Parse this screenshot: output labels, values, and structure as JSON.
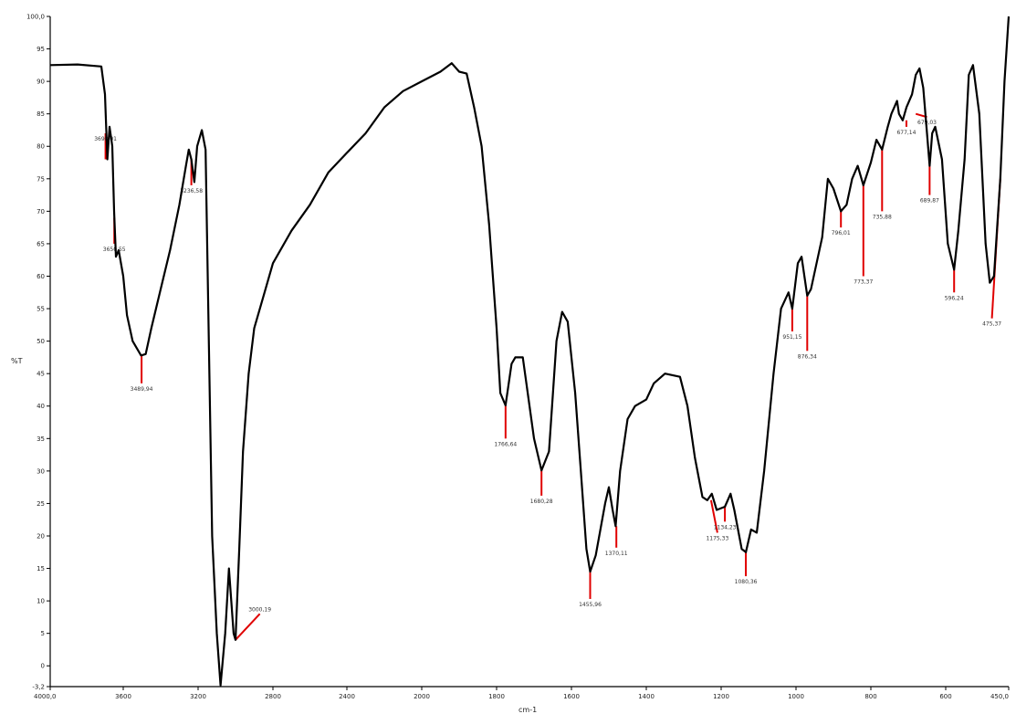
{
  "chart_data": {
    "type": "line",
    "xlabel": "cm-1",
    "ylabel": "%T",
    "xlim": [
      4000,
      450
    ],
    "ylim": [
      -3.2,
      100
    ],
    "x_ticks": [
      "4000,0",
      "3600",
      "3200",
      "2800",
      "2400",
      "2000",
      "1800",
      "1600",
      "1400",
      "1200",
      "1000",
      "800",
      "600",
      "450,0"
    ],
    "y_ticks": [
      "-3,2",
      "0",
      "5",
      "10",
      "15",
      "20",
      "25",
      "30",
      "35",
      "40",
      "45",
      "50",
      "55",
      "60",
      "65",
      "70",
      "75",
      "80",
      "85",
      "90",
      "95",
      "100,0"
    ],
    "series": [
      {
        "points": [
          [
            4000,
            92.5
          ],
          [
            3850,
            92.6
          ],
          [
            3720,
            92.3
          ],
          [
            3700,
            88
          ],
          [
            3687,
            78
          ],
          [
            3675,
            83
          ],
          [
            3660,
            80
          ],
          [
            3650,
            70
          ],
          [
            3640,
            63
          ],
          [
            3625,
            64
          ],
          [
            3600,
            60
          ],
          [
            3580,
            54
          ],
          [
            3550,
            50
          ],
          [
            3505,
            47.8
          ],
          [
            3480,
            48
          ],
          [
            3450,
            52
          ],
          [
            3400,
            58
          ],
          [
            3350,
            64
          ],
          [
            3300,
            71
          ],
          [
            3265,
            77
          ],
          [
            3250,
            79.5
          ],
          [
            3236,
            78
          ],
          [
            3220,
            74.5
          ],
          [
            3205,
            80
          ],
          [
            3180,
            82.5
          ],
          [
            3160,
            79.5
          ],
          [
            3125,
            20
          ],
          [
            3100,
            5
          ],
          [
            3080,
            -3
          ],
          [
            3055,
            5
          ],
          [
            3035,
            15
          ],
          [
            3010,
            5
          ],
          [
            3000,
            4
          ],
          [
            2980,
            18
          ],
          [
            2960,
            33
          ],
          [
            2930,
            45
          ],
          [
            2900,
            52
          ],
          [
            2850,
            57
          ],
          [
            2800,
            62
          ],
          [
            2700,
            67
          ],
          [
            2600,
            71
          ],
          [
            2500,
            76
          ],
          [
            2400,
            79
          ],
          [
            2300,
            82
          ],
          [
            2200,
            86
          ],
          [
            2100,
            88.5
          ],
          [
            2000,
            90
          ],
          [
            1950,
            91.5
          ],
          [
            1920,
            92.8
          ],
          [
            1900,
            91.5
          ],
          [
            1880,
            91.2
          ],
          [
            1860,
            86
          ],
          [
            1840,
            80
          ],
          [
            1820,
            68
          ],
          [
            1800,
            52
          ],
          [
            1790,
            42
          ],
          [
            1776,
            40.1
          ],
          [
            1760,
            46.5
          ],
          [
            1750,
            47.5
          ],
          [
            1730,
            47.5
          ],
          [
            1700,
            35
          ],
          [
            1680,
            30.1
          ],
          [
            1660,
            33
          ],
          [
            1640,
            50
          ],
          [
            1625,
            54.5
          ],
          [
            1610,
            53
          ],
          [
            1590,
            42
          ],
          [
            1575,
            30
          ],
          [
            1560,
            18
          ],
          [
            1550,
            14.5
          ],
          [
            1535,
            17
          ],
          [
            1510,
            25
          ],
          [
            1500,
            27.5
          ],
          [
            1490,
            24
          ],
          [
            1482,
            21.5
          ],
          [
            1470,
            30
          ],
          [
            1450,
            38
          ],
          [
            1430,
            40
          ],
          [
            1400,
            41
          ],
          [
            1380,
            43.5
          ],
          [
            1350,
            45
          ],
          [
            1310,
            44.5
          ],
          [
            1290,
            40
          ],
          [
            1270,
            32
          ],
          [
            1250,
            26
          ],
          [
            1237,
            25.5
          ],
          [
            1225,
            26.5
          ],
          [
            1212,
            24
          ],
          [
            1190,
            24.5
          ],
          [
            1175,
            26.5
          ],
          [
            1165,
            24
          ],
          [
            1145,
            18
          ],
          [
            1134,
            17.5
          ],
          [
            1120,
            21
          ],
          [
            1105,
            20.5
          ],
          [
            1085,
            30
          ],
          [
            1060,
            45
          ],
          [
            1040,
            55
          ],
          [
            1020,
            57.5
          ],
          [
            1010,
            55
          ],
          [
            995,
            62
          ],
          [
            985,
            63
          ],
          [
            970,
            57
          ],
          [
            960,
            58
          ],
          [
            930,
            66
          ],
          [
            915,
            75
          ],
          [
            900,
            73.5
          ],
          [
            880,
            70
          ],
          [
            865,
            71
          ],
          [
            850,
            75
          ],
          [
            835,
            77
          ],
          [
            820,
            74
          ],
          [
            800,
            77.5
          ],
          [
            785,
            81
          ],
          [
            770,
            79.5
          ],
          [
            755,
            83
          ],
          [
            745,
            85
          ],
          [
            730,
            87
          ],
          [
            725,
            85
          ],
          [
            715,
            84
          ],
          [
            705,
            86
          ],
          [
            690,
            88
          ],
          [
            680,
            91
          ],
          [
            670,
            92
          ],
          [
            660,
            89
          ],
          [
            650,
            82
          ],
          [
            643,
            77
          ],
          [
            636,
            82
          ],
          [
            628,
            83
          ],
          [
            610,
            78
          ],
          [
            595,
            65
          ],
          [
            580,
            61
          ],
          [
            570,
            67
          ],
          [
            555,
            78
          ],
          [
            545,
            91
          ],
          [
            535,
            92.5
          ],
          [
            520,
            85
          ],
          [
            505,
            65
          ],
          [
            495,
            59
          ],
          [
            485,
            60
          ],
          [
            470,
            75
          ],
          [
            460,
            90
          ],
          [
            450,
            100
          ]
        ]
      }
    ],
    "peaks": [
      {
        "label": "3698,01",
        "x": 3697,
        "y": 78,
        "y_end": 82
      },
      {
        "label": "3650,55",
        "x": 3649,
        "y": 69,
        "y_end": 65
      },
      {
        "label": "3489,94",
        "x": 3502,
        "y": 47.8,
        "y_end": 43.5
      },
      {
        "label": "3236,58",
        "x": 3236,
        "y": 78,
        "y_end": 74
      },
      {
        "label": "3000,19",
        "x": 3000,
        "y": 4,
        "x_end": 2870,
        "y_end": 8
      },
      {
        "label": "1766,64",
        "x": 1776,
        "y": 40.1,
        "y_end": 35
      },
      {
        "label": "1680,28",
        "x": 1680,
        "y": 30.1,
        "y_end": 26.2
      },
      {
        "label": "1455,96",
        "x": 1550,
        "y": 14.5,
        "y_end": 10.3
      },
      {
        "label": "1370,11",
        "x": 1480,
        "y": 21.5,
        "y_end": 18.2
      },
      {
        "label": "1175,33",
        "x": 1227,
        "y": 25.5,
        "x_end": 1210,
        "y_end": 20.5
      },
      {
        "label": "1134,23",
        "x": 1190,
        "y": 24.5,
        "y_end": 22.2
      },
      {
        "label": "1080,36",
        "x": 1134,
        "y": 17.5,
        "y_end": 13.8
      },
      {
        "label": "951,15",
        "x": 1010,
        "y": 55,
        "y_end": 51.5
      },
      {
        "label": "876,34",
        "x": 970,
        "y": 57,
        "y_end": 48.5
      },
      {
        "label": "796,01",
        "x": 880,
        "y": 70,
        "y_end": 67.5
      },
      {
        "label": "773,37",
        "x": 820,
        "y": 74,
        "y_end": 60
      },
      {
        "label": "735,88",
        "x": 770,
        "y": 79.5,
        "y_end": 70
      },
      {
        "label": "677,14",
        "x": 705,
        "y": 84,
        "y_end": 83
      },
      {
        "label": "679,03",
        "x": 680,
        "y": 85,
        "x_end": 650,
        "y_end": 84.5
      },
      {
        "label": "689,87",
        "x": 643,
        "y": 77,
        "y_end": 72.5
      },
      {
        "label": "596,24",
        "x": 580,
        "y": 61,
        "y_end": 57.5
      },
      {
        "label": "475,37",
        "x": 470,
        "y": 75,
        "x_end": 490,
        "y_end": 53.5
      }
    ]
  }
}
